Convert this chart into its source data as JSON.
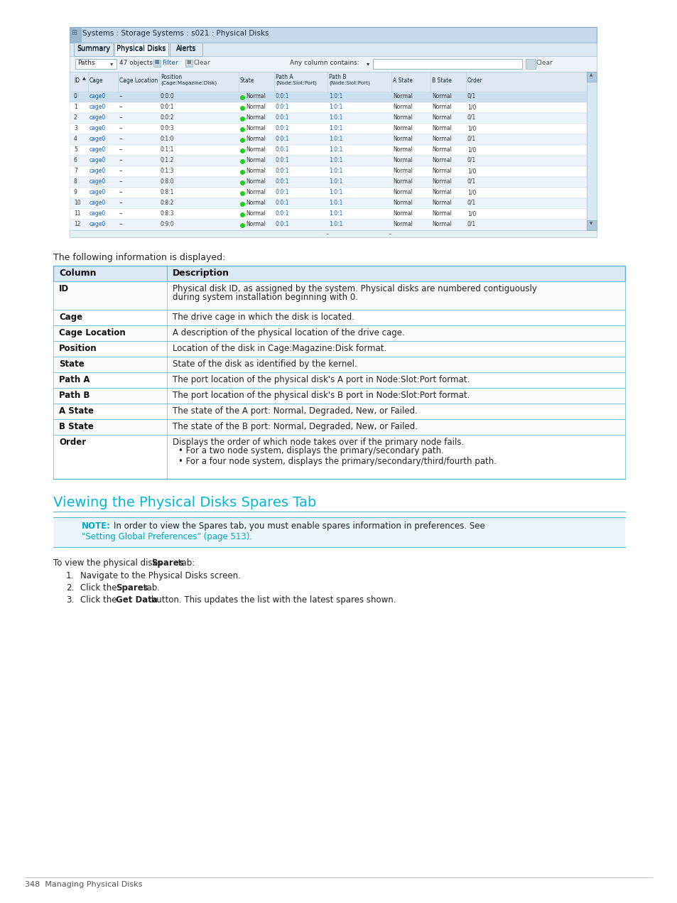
{
  "bg_color": "#ffffff",
  "screenshot_title": "Systems : Storage Systems : s021 : Physical Disks",
  "tab_labels": [
    "Summary",
    "Physical Disks",
    "Alerts"
  ],
  "active_tab": "Physical Disks",
  "objects_text": "47 objects",
  "any_column_text": "Any column contains:",
  "table_col_headers": [
    "ID",
    "Cage",
    "Cage Location",
    "Position\n(Cage:Magazine:Disk)",
    "State",
    "Path A\n(Node:Slot:Port)",
    "Path B\n(Node:Slot:Port)",
    "A State",
    "B State",
    "Order"
  ],
  "table_rows": [
    [
      "0",
      "cage0",
      "--",
      "0:0:0",
      "Normal",
      "0:0:1",
      "1:0:1",
      "Normal",
      "Normal",
      "0/1"
    ],
    [
      "1",
      "cage0",
      "--",
      "0:0:1",
      "Normal",
      "0:0:1",
      "1:0:1",
      "Normal",
      "Normal",
      "1/0"
    ],
    [
      "2",
      "cage0",
      "--",
      "0:0:2",
      "Normal",
      "0:0:1",
      "1:0:1",
      "Normal",
      "Normal",
      "0/1"
    ],
    [
      "3",
      "cage0",
      "--",
      "0:0:3",
      "Normal",
      "0:0:1",
      "1:0:1",
      "Normal",
      "Normal",
      "1/0"
    ],
    [
      "4",
      "cage0",
      "--",
      "0:1:0",
      "Normal",
      "0:0:1",
      "1:0:1",
      "Normal",
      "Normal",
      "0/1"
    ],
    [
      "5",
      "cage0",
      "--",
      "0:1:1",
      "Normal",
      "0:0:1",
      "1:0:1",
      "Normal",
      "Normal",
      "1/0"
    ],
    [
      "6",
      "cage0",
      "--",
      "0:1:2",
      "Normal",
      "0:0:1",
      "1:0:1",
      "Normal",
      "Normal",
      "0/1"
    ],
    [
      "7",
      "cage0",
      "--",
      "0:1:3",
      "Normal",
      "0:0:1",
      "1:0:1",
      "Normal",
      "Normal",
      "1/0"
    ],
    [
      "8",
      "cage0",
      "--",
      "0:8:0",
      "Normal",
      "0:0:1",
      "1:0:1",
      "Normal",
      "Normal",
      "0/1"
    ],
    [
      "9",
      "cage0",
      "--",
      "0:8:1",
      "Normal",
      "0:0:1",
      "1:0:1",
      "Normal",
      "Normal",
      "1/0"
    ],
    [
      "10",
      "cage0",
      "--",
      "0:8:2",
      "Normal",
      "0:0:1",
      "1:0:1",
      "Normal",
      "Normal",
      "0/1"
    ],
    [
      "11",
      "cage0",
      "--",
      "0:8:3",
      "Normal",
      "0:0:1",
      "1:0:1",
      "Normal",
      "Normal",
      "1/0"
    ],
    [
      "12",
      "cage0",
      "--",
      "0:9:0",
      "Normal",
      "0:0:1",
      "1:0:1",
      "Normal",
      "Normal",
      "0/1"
    ]
  ],
  "info_text": "The following information is displayed:",
  "desc_headers": [
    "Column",
    "Description"
  ],
  "desc_rows": [
    [
      "ID",
      "Physical disk ID, as assigned by the system. Physical disks are numbered contiguously\nduring system installation beginning with 0."
    ],
    [
      "Cage",
      "The drive cage in which the disk is located."
    ],
    [
      "Cage Location",
      "A description of the physical location of the drive cage."
    ],
    [
      "Position",
      "Location of the disk in Cage:Magazine:Disk format."
    ],
    [
      "State",
      "State of the disk as identified by the kernel."
    ],
    [
      "Path A",
      "The port location of the physical disk's A port in Node:Slot:Port format."
    ],
    [
      "Path B",
      "The port location of the physical disk's B port in Node:Slot:Port format."
    ],
    [
      "A State",
      "The state of the A port: Normal, Degraded, New, or Failed."
    ],
    [
      "B State",
      "The state of the B port: Normal, Degraded, New, or Failed."
    ],
    [
      "Order",
      "Displays the order of which node takes over if the primary node fails.\n• For a two node system, displays the primary/secondary path.\n• For a four node system, displays the primary/secondary/third/fourth path."
    ]
  ],
  "section_title": "Viewing the Physical Disks Spares Tab",
  "note_label": "NOTE:",
  "note_text": "In order to view the Spares tab, you must enable spares information in preferences. See",
  "note_link": "\"Setting Global Preferences\" (page 513).",
  "proc_intro_parts": [
    "To view the physical disks ",
    "Spares",
    " tab:"
  ],
  "steps": [
    [
      "Navigate to the Physical Disks screen."
    ],
    [
      "Click the ",
      "Spares",
      " tab."
    ],
    [
      "Click the ",
      "Get Data",
      " button. This updates the list with the latest spares shown."
    ]
  ],
  "footer_text": "348  Managing Physical Disks",
  "cyan_color": "#00b8d8",
  "note_cyan": "#00aac8",
  "link_color": "#00aac8",
  "border_color": "#55b8d8",
  "header_bg": "#dce9f5",
  "row_sel_bg": "#cce0f0",
  "row_alt_bg": "#edf4fb",
  "row_bg": "#ffffff",
  "ss_title_bg_top": "#c5d8ec",
  "ss_title_bg_bot": "#a8c4de",
  "ss_body_bg": "#f4f8fc",
  "tab_active_bg": "#f0f5fa",
  "tab_inactive_bg": "#dce8f0",
  "toolbar_bg": "#edf3f8",
  "col_header_bg": "#dde8f2",
  "scrollbar_bg": "#d8e8f2",
  "scrollbar_thumb": "#b0c8d8"
}
